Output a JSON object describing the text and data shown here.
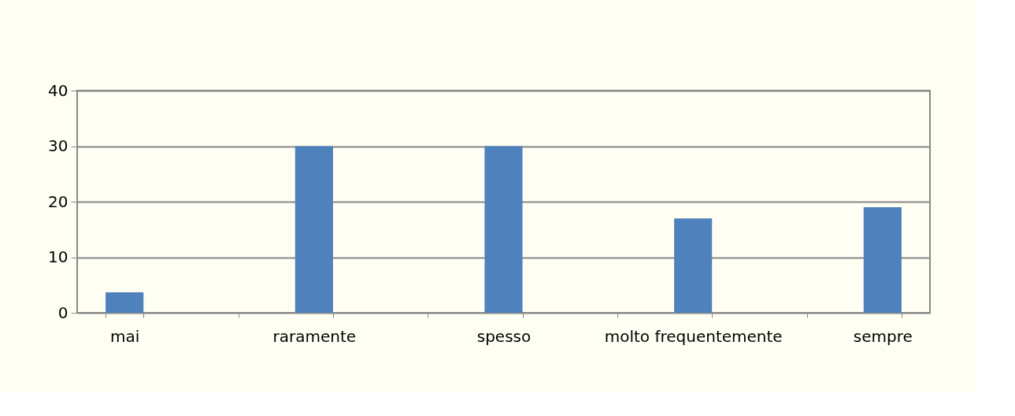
{
  "chart_data": {
    "type": "bar",
    "categories": [
      "mai",
      null,
      "raramente",
      null,
      "spesso",
      null,
      "molto frequentemente",
      null,
      "sempre"
    ],
    "values": [
      3.7,
      null,
      30,
      null,
      30,
      null,
      17,
      null,
      19
    ],
    "color": "#4f81bd",
    "ylim": [
      0,
      40
    ],
    "yticks": [
      0,
      10,
      20,
      30,
      40
    ],
    "grid": "y"
  }
}
